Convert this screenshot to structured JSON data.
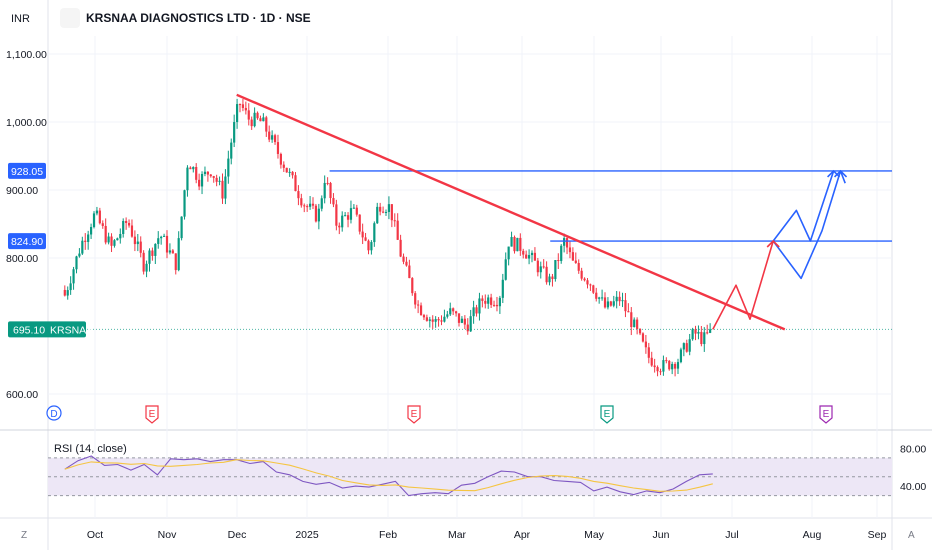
{
  "header": {
    "currency": "INR",
    "symbol_title": "KRSNAA DIAGNOSTICS LTD · 1D · NSE",
    "flag_color": "#f5f5f5"
  },
  "price_axis": {
    "ticks": [
      "1,100.00",
      "1,000.00",
      "900.00",
      "800.00",
      "600.00"
    ],
    "levels": [
      {
        "value": 928.05,
        "label": "928.05",
        "color": "#2962ff"
      },
      {
        "value": 824.9,
        "label": "824.90",
        "color": "#2962ff"
      }
    ],
    "last_price": {
      "value": 695.1,
      "label": "695.10",
      "ticker": "KRSNAA",
      "color": "#089981"
    }
  },
  "rsi_pane": {
    "title": "RSI (14, close)",
    "ticks": [
      "80.00",
      "40.00"
    ],
    "line_color": "#7e57c2",
    "ma_color": "#f5c542",
    "band_color": "#ede7f6"
  },
  "time_axis": {
    "labels": [
      "Oct",
      "Nov",
      "Dec",
      "2025",
      "Feb",
      "Mar",
      "Apr",
      "May",
      "Jun",
      "Jul",
      "Aug",
      "Sep"
    ],
    "left_button": "Z",
    "right_button": "A"
  },
  "event_markers": [
    {
      "letter": "D",
      "color": "#2962ff"
    },
    {
      "letter": "E",
      "color": "#f23645"
    },
    {
      "letter": "E",
      "color": "#f23645"
    },
    {
      "letter": "E",
      "color": "#089981"
    },
    {
      "letter": "E",
      "color": "#9c27b0"
    }
  ],
  "colors": {
    "up": "#089981",
    "down": "#f23645",
    "trendline": "#f23645",
    "projection": "#2962ff",
    "grid": "#f0f3fa"
  },
  "chart_data": {
    "type": "candlestick",
    "title": "KRSNAA DIAGNOSTICS LTD · 1D · NSE",
    "ylim": [
      560,
      1130
    ],
    "close_path": [
      [
        "Sep 18",
        745
      ],
      [
        "Sep 25",
        820
      ],
      [
        "Oct 1",
        865
      ],
      [
        "Oct 8",
        815
      ],
      [
        "Oct 15",
        855
      ],
      [
        "Oct 22",
        790
      ],
      [
        "Oct 29",
        835
      ],
      [
        "Nov 5",
        790
      ],
      [
        "Nov 10",
        945
      ],
      [
        "Nov 15",
        915
      ],
      [
        "Nov 20",
        930
      ],
      [
        "Nov 25",
        895
      ],
      [
        "Nov 28",
        960
      ],
      [
        "Dec 2",
        1030
      ],
      [
        "Dec 6",
        1005
      ],
      [
        "Dec 12",
        1000
      ],
      [
        "Dec 18",
        960
      ],
      [
        "Dec 24",
        920
      ],
      [
        "Dec 30",
        880
      ],
      [
        "Jan 5",
        860
      ],
      [
        "Jan 8",
        920
      ],
      [
        "Jan 13",
        850
      ],
      [
        "Jan 20",
        870
      ],
      [
        "Jan 27",
        810
      ],
      [
        "Jan 31",
        880
      ],
      [
        "Feb 5",
        875
      ],
      [
        "Feb 10",
        800
      ],
      [
        "Feb 17",
        730
      ],
      [
        "Feb 24",
        705
      ],
      [
        "Mar 3",
        720
      ],
      [
        "Mar 10",
        700
      ],
      [
        "Mar 17",
        740
      ],
      [
        "Mar 24",
        740
      ],
      [
        "Mar 28",
        825
      ],
      [
        "Apr 3",
        815
      ],
      [
        "Apr 9",
        790
      ],
      [
        "Apr 15",
        765
      ],
      [
        "Apr 21",
        825
      ],
      [
        "Apr 25",
        790
      ],
      [
        "May 2",
        765
      ],
      [
        "May 9",
        725
      ],
      [
        "May 15",
        740
      ],
      [
        "May 21",
        700
      ],
      [
        "May 27",
        655
      ],
      [
        "Jun 2",
        640
      ],
      [
        "Jun 9",
        650
      ],
      [
        "Jun 16",
        690
      ],
      [
        "Jun 20",
        680
      ],
      [
        "Jun 24",
        695.1
      ]
    ],
    "horizontal_levels": [
      928.05,
      824.9
    ],
    "trendline": [
      [
        "Dec 1",
        1040
      ],
      [
        "Jul 25",
        695
      ]
    ],
    "projection_red": [
      [
        "Jun 24",
        695
      ],
      [
        "Jul 4",
        760
      ],
      [
        "Jul 10",
        710
      ],
      [
        "Jul 20",
        825
      ]
    ],
    "projection_blue_a": [
      [
        "Jul 20",
        825
      ],
      [
        "Jul 30",
        870
      ],
      [
        "Aug 5",
        825
      ],
      [
        "Aug 15",
        928
      ]
    ],
    "projection_blue_b": [
      [
        "Jul 20",
        825
      ],
      [
        "Aug 1",
        770
      ],
      [
        "Aug 10",
        840
      ],
      [
        "Aug 18",
        928
      ],
      [
        "Aug 20",
        910
      ]
    ],
    "rsi": {
      "ylim": [
        20,
        90
      ],
      "overbought": 70,
      "oversold": 30,
      "values": [
        58,
        67,
        72,
        62,
        63,
        57,
        63,
        52,
        69,
        68,
        69,
        66,
        68,
        68,
        64,
        66,
        55,
        52,
        45,
        42,
        44,
        38,
        40,
        39,
        42,
        45,
        30,
        32,
        33,
        32,
        41,
        43,
        50,
        56,
        55,
        50,
        50,
        46,
        45,
        44,
        35,
        39,
        34,
        31,
        35,
        33,
        37,
        45,
        52,
        53
      ]
    }
  }
}
